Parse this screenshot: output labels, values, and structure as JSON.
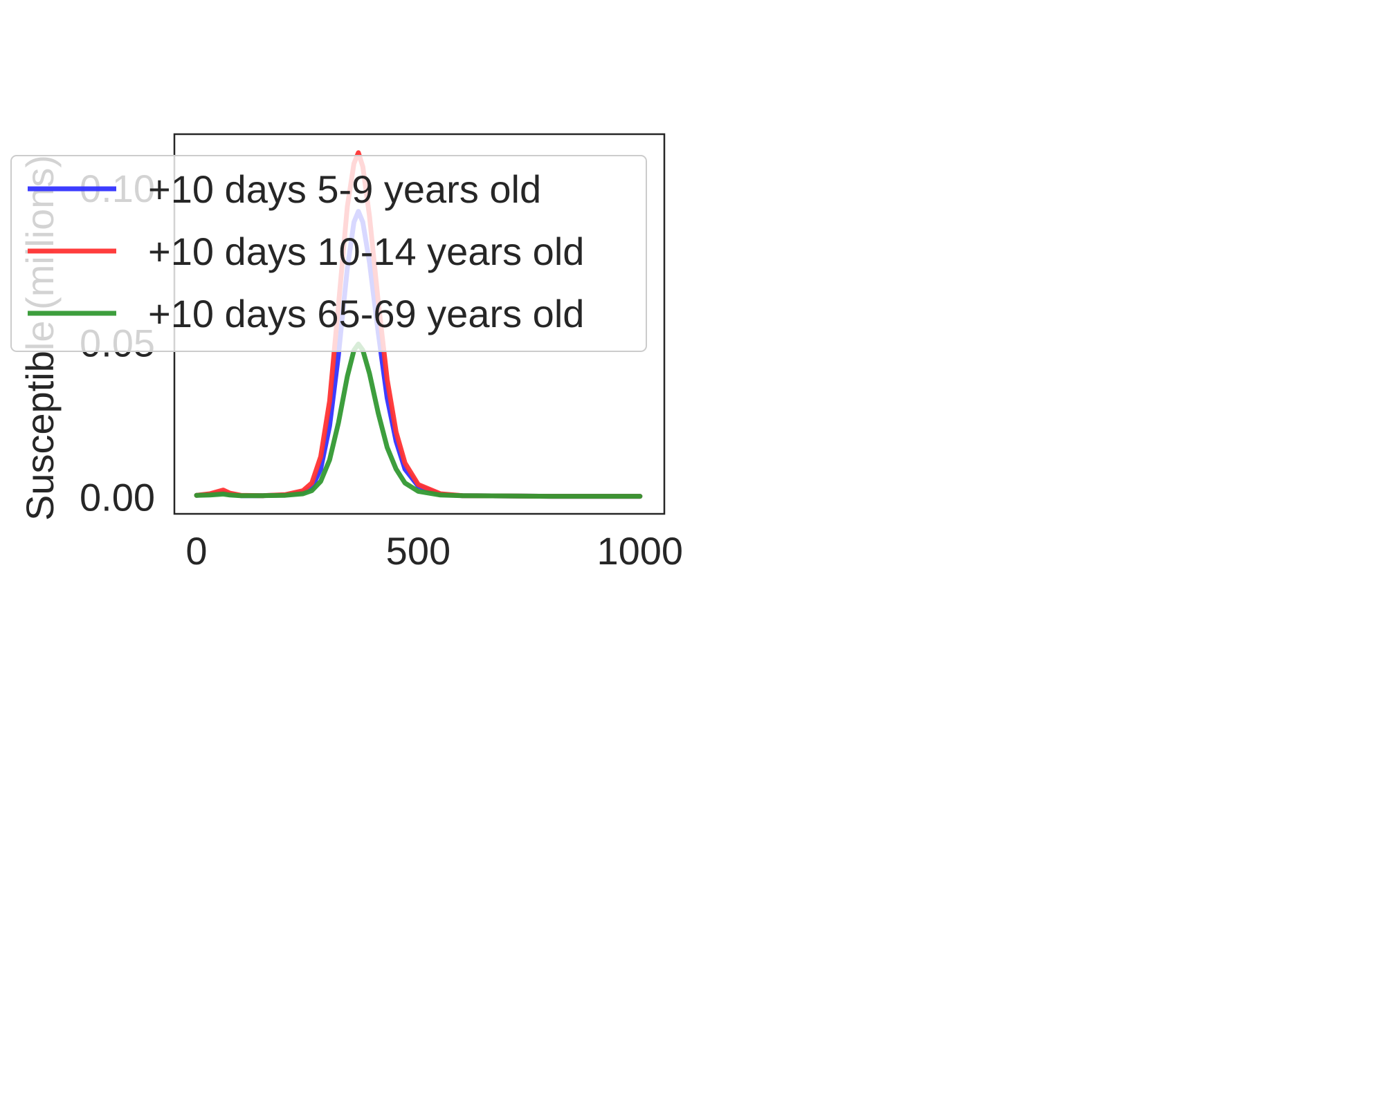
{
  "chart_data": {
    "type": "line",
    "title": "",
    "xlabel": "",
    "ylabel": "Susceptible (millions)",
    "xlim": [
      -50,
      1055
    ],
    "ylim": [
      -0.0055,
      0.1175
    ],
    "xticks": [
      0,
      500,
      1000
    ],
    "xtick_labels": [
      "0",
      "500",
      "1000"
    ],
    "yticks": [
      0.0,
      0.05,
      0.1
    ],
    "ytick_labels": [
      "0.00",
      "0.05",
      "0.10"
    ],
    "grid": false,
    "legend_position": "top-left",
    "series": [
      {
        "name": "+10 days 5-9 years old",
        "color": "#3333ff",
        "x": [
          0,
          30,
          50,
          60,
          75,
          100,
          150,
          200,
          240,
          260,
          280,
          300,
          320,
          340,
          355,
          365,
          375,
          390,
          410,
          430,
          450,
          470,
          500,
          550,
          600,
          700,
          800,
          900,
          1000
        ],
        "y": [
          0.0005,
          0.0008,
          0.0012,
          0.0014,
          0.0008,
          0.0004,
          0.0004,
          0.0006,
          0.0015,
          0.003,
          0.009,
          0.023,
          0.046,
          0.074,
          0.089,
          0.0925,
          0.089,
          0.076,
          0.053,
          0.032,
          0.018,
          0.009,
          0.0035,
          0.0008,
          0.0004,
          0.0003,
          0.0002,
          0.0002,
          0.0002
        ]
      },
      {
        "name": "+10 days 10-14 years old",
        "color": "#ff3333",
        "x": [
          0,
          30,
          50,
          60,
          75,
          100,
          150,
          200,
          240,
          260,
          280,
          300,
          320,
          340,
          355,
          365,
          375,
          390,
          410,
          430,
          450,
          470,
          500,
          550,
          600,
          700,
          800,
          900,
          1000
        ],
        "y": [
          0.0005,
          0.001,
          0.0018,
          0.0022,
          0.0012,
          0.0005,
          0.0004,
          0.0007,
          0.002,
          0.0045,
          0.013,
          0.031,
          0.062,
          0.094,
          0.108,
          0.1115,
          0.107,
          0.091,
          0.063,
          0.038,
          0.021,
          0.011,
          0.004,
          0.001,
          0.0004,
          0.0003,
          0.0002,
          0.0002,
          0.0002
        ]
      },
      {
        "name": "+10 days 65-69 years old",
        "color": "#339933",
        "x": [
          0,
          30,
          50,
          60,
          75,
          100,
          150,
          200,
          240,
          260,
          280,
          300,
          320,
          340,
          355,
          365,
          375,
          390,
          410,
          430,
          450,
          470,
          500,
          550,
          600,
          700,
          800,
          900,
          1000
        ],
        "y": [
          0.0005,
          0.0006,
          0.0008,
          0.0009,
          0.0006,
          0.0004,
          0.0004,
          0.0005,
          0.001,
          0.002,
          0.005,
          0.012,
          0.024,
          0.039,
          0.0475,
          0.0495,
          0.0475,
          0.04,
          0.027,
          0.016,
          0.009,
          0.0045,
          0.0018,
          0.0006,
          0.0004,
          0.0003,
          0.0002,
          0.0002,
          0.0002
        ]
      }
    ]
  }
}
